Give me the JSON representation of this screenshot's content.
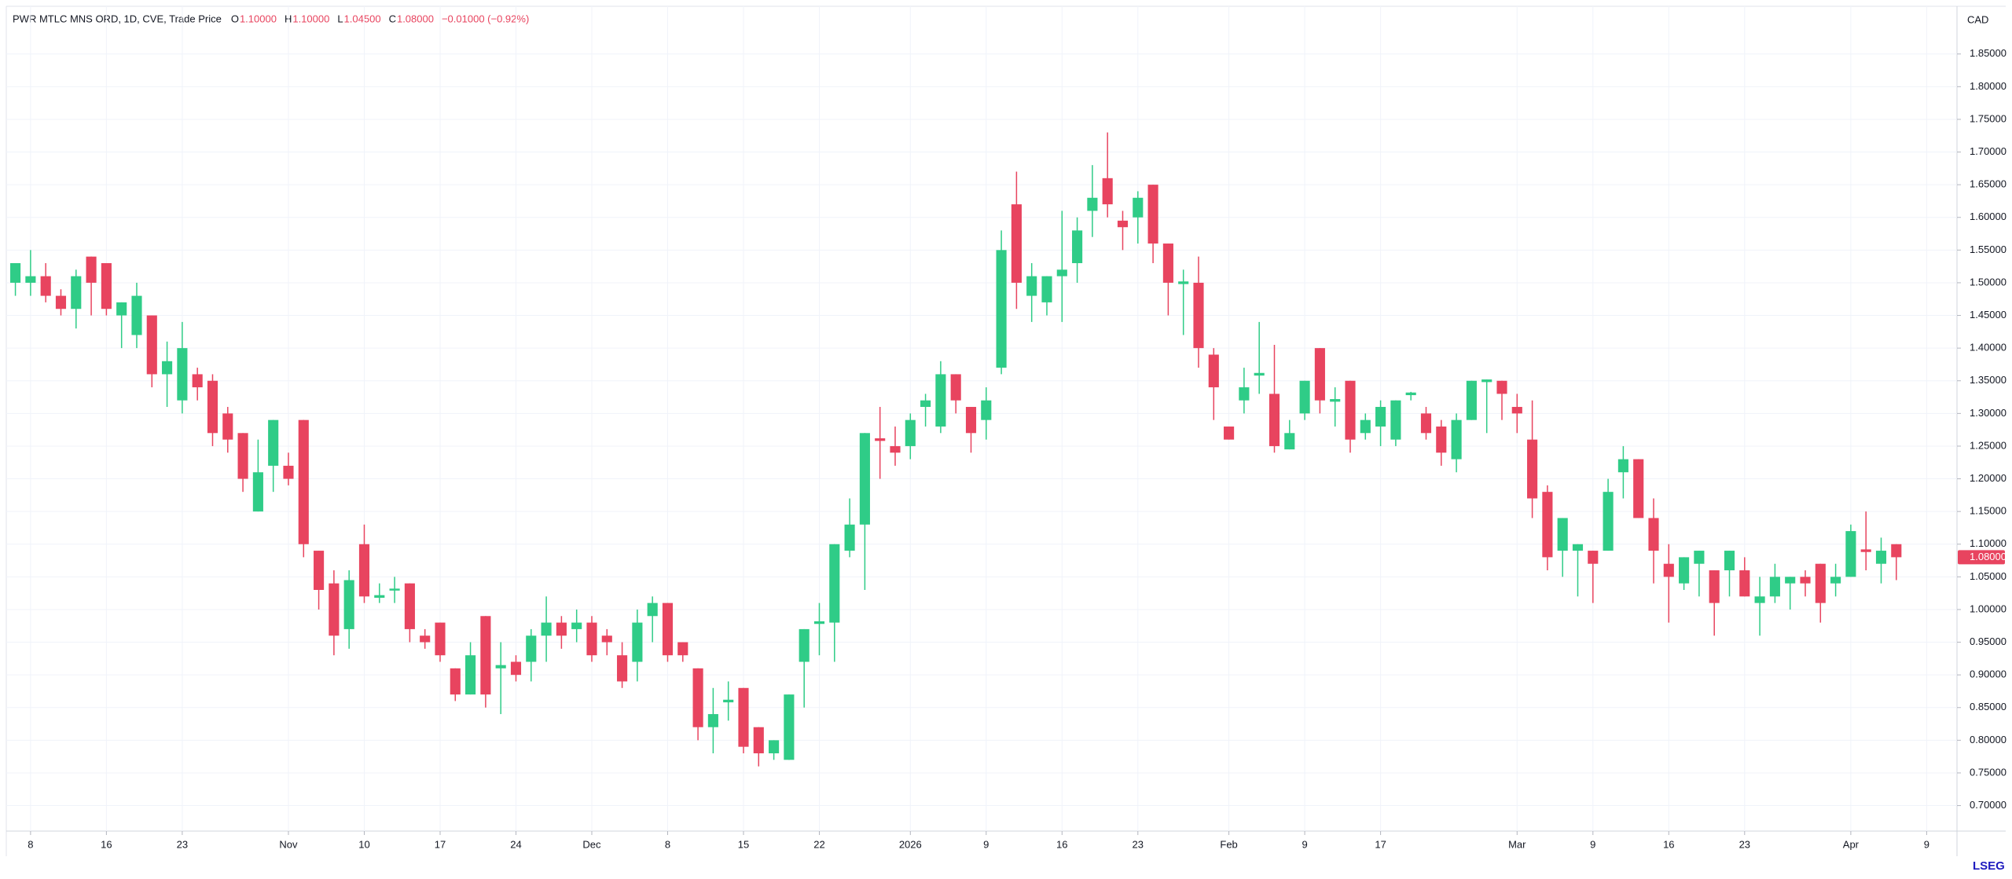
{
  "chart_data": {
    "type": "candlestick",
    "title": "PWR MTLC MNS ORD, 1D, CVE, Trade Price",
    "ohlc_header": [
      {
        "key": "O",
        "value": "1.10000"
      },
      {
        "key": "H",
        "value": "1.10000"
      },
      {
        "key": "L",
        "value": "1.04500"
      },
      {
        "key": "C",
        "value": "1.08000"
      }
    ],
    "change": "−0.01000 (−0.92%)",
    "currency": "CAD",
    "logo": "LSEG",
    "up_color": "#2fcc87",
    "down_color": "#e8445f",
    "grid": true,
    "price_tag": {
      "value": 1.08,
      "label": "1.08000"
    },
    "open": [
      1.5,
      1.5,
      1.51,
      1.48,
      1.46,
      1.54,
      1.53,
      1.45,
      1.42,
      1.45,
      1.36,
      1.32,
      1.36,
      1.35,
      1.3,
      1.27,
      1.15,
      1.22,
      1.22,
      1.29,
      1.09,
      1.04,
      0.97,
      1.1,
      1.018,
      1.029,
      1.04,
      0.96,
      0.98,
      0.91,
      0.87,
      0.99,
      0.91,
      0.92,
      0.92,
      0.96,
      0.98,
      0.97,
      0.98,
      0.96,
      0.93,
      0.92,
      0.99,
      1.01,
      0.95,
      0.91,
      0.82,
      0.858,
      0.88,
      0.82,
      0.78,
      0.77,
      0.92,
      0.978,
      0.98,
      1.09,
      1.13,
      1.262,
      1.25,
      1.25,
      1.31,
      1.28,
      1.36,
      1.31,
      1.29,
      1.37,
      1.62,
      1.48,
      1.47,
      1.51,
      1.53,
      1.61,
      1.66,
      1.595,
      1.6,
      1.65,
      1.56,
      1.498,
      1.5,
      1.39,
      1.28,
      1.32,
      1.358,
      1.33,
      1.245,
      1.3,
      1.4,
      1.318,
      1.35,
      1.27,
      1.28,
      1.26,
      1.328,
      1.3,
      1.28,
      1.23,
      1.29,
      1.348,
      1.35,
      1.31,
      1.26,
      1.18,
      1.09,
      1.09,
      1.09,
      1.09,
      1.21,
      1.23,
      1.14,
      1.07,
      1.04,
      1.07,
      1.06,
      1.06,
      1.06,
      1.01,
      1.02,
      1.04,
      1.05,
      1.07,
      1.04,
      1.05,
      1.092,
      1.07,
      1.1
    ],
    "high": [
      1.53,
      1.55,
      1.53,
      1.49,
      1.52,
      1.54,
      1.53,
      1.47,
      1.5,
      1.45,
      1.41,
      1.44,
      1.37,
      1.36,
      1.31,
      1.27,
      1.26,
      1.29,
      1.24,
      1.29,
      1.09,
      1.06,
      1.06,
      1.13,
      1.04,
      1.05,
      1.04,
      0.97,
      0.98,
      0.91,
      0.95,
      0.99,
      0.95,
      0.93,
      0.97,
      1.02,
      0.99,
      1.0,
      0.99,
      0.97,
      0.95,
      1.0,
      1.02,
      1.01,
      0.95,
      0.91,
      0.88,
      0.89,
      0.88,
      0.82,
      0.8,
      0.87,
      0.97,
      1.01,
      1.1,
      1.17,
      1.27,
      1.31,
      1.28,
      1.3,
      1.33,
      1.38,
      1.36,
      1.31,
      1.34,
      1.58,
      1.67,
      1.53,
      1.51,
      1.61,
      1.6,
      1.68,
      1.73,
      1.61,
      1.64,
      1.65,
      1.56,
      1.52,
      1.54,
      1.4,
      1.28,
      1.37,
      1.44,
      1.405,
      1.29,
      1.35,
      1.4,
      1.34,
      1.35,
      1.3,
      1.32,
      1.32,
      1.333,
      1.31,
      1.29,
      1.3,
      1.35,
      1.352,
      1.35,
      1.33,
      1.32,
      1.19,
      1.14,
      1.1,
      1.09,
      1.2,
      1.25,
      1.23,
      1.17,
      1.1,
      1.08,
      1.09,
      1.06,
      1.09,
      1.08,
      1.05,
      1.07,
      1.05,
      1.06,
      1.07,
      1.07,
      1.13,
      1.15,
      1.11,
      1.1
    ],
    "low": [
      1.48,
      1.48,
      1.47,
      1.45,
      1.43,
      1.45,
      1.45,
      1.4,
      1.4,
      1.34,
      1.31,
      1.3,
      1.32,
      1.25,
      1.24,
      1.18,
      1.15,
      1.18,
      1.19,
      1.08,
      1.0,
      0.93,
      0.94,
      1.01,
      1.01,
      1.01,
      0.95,
      0.94,
      0.92,
      0.86,
      0.87,
      0.85,
      0.84,
      0.89,
      0.89,
      0.92,
      0.94,
      0.95,
      0.92,
      0.93,
      0.88,
      0.89,
      0.95,
      0.92,
      0.92,
      0.8,
      0.78,
      0.83,
      0.78,
      0.76,
      0.77,
      0.77,
      0.85,
      0.93,
      0.92,
      1.08,
      1.03,
      1.2,
      1.22,
      1.23,
      1.28,
      1.27,
      1.3,
      1.24,
      1.26,
      1.36,
      1.46,
      1.44,
      1.45,
      1.44,
      1.5,
      1.57,
      1.6,
      1.55,
      1.56,
      1.53,
      1.45,
      1.42,
      1.37,
      1.29,
      1.26,
      1.3,
      1.33,
      1.24,
      1.245,
      1.29,
      1.3,
      1.28,
      1.24,
      1.26,
      1.25,
      1.25,
      1.32,
      1.26,
      1.22,
      1.21,
      1.29,
      1.27,
      1.29,
      1.27,
      1.14,
      1.06,
      1.05,
      1.02,
      1.01,
      1.09,
      1.17,
      1.14,
      1.04,
      0.98,
      1.03,
      1.02,
      0.96,
      1.02,
      1.02,
      0.96,
      1.01,
      1.0,
      1.02,
      0.98,
      1.02,
      1.05,
      1.06,
      1.04,
      1.045
    ],
    "close": [
      1.53,
      1.51,
      1.48,
      1.46,
      1.51,
      1.5,
      1.46,
      1.47,
      1.48,
      1.36,
      1.38,
      1.4,
      1.34,
      1.27,
      1.26,
      1.2,
      1.21,
      1.29,
      1.2,
      1.1,
      1.03,
      0.96,
      1.045,
      1.02,
      1.022,
      1.032,
      0.97,
      0.95,
      0.93,
      0.87,
      0.93,
      0.87,
      0.915,
      0.9,
      0.96,
      0.98,
      0.96,
      0.98,
      0.93,
      0.95,
      0.89,
      0.98,
      1.01,
      0.93,
      0.93,
      0.82,
      0.84,
      0.862,
      0.79,
      0.78,
      0.8,
      0.87,
      0.97,
      0.982,
      1.1,
      1.13,
      1.27,
      1.258,
      1.24,
      1.29,
      1.32,
      1.36,
      1.32,
      1.27,
      1.32,
      1.55,
      1.5,
      1.51,
      1.51,
      1.52,
      1.58,
      1.63,
      1.62,
      1.585,
      1.63,
      1.56,
      1.5,
      1.502,
      1.4,
      1.34,
      1.26,
      1.34,
      1.362,
      1.25,
      1.27,
      1.35,
      1.32,
      1.322,
      1.26,
      1.29,
      1.31,
      1.32,
      1.332,
      1.27,
      1.24,
      1.29,
      1.35,
      1.352,
      1.33,
      1.3,
      1.17,
      1.08,
      1.14,
      1.1,
      1.07,
      1.18,
      1.23,
      1.14,
      1.09,
      1.05,
      1.08,
      1.09,
      1.01,
      1.09,
      1.02,
      1.02,
      1.05,
      1.05,
      1.04,
      1.01,
      1.05,
      1.12,
      1.088,
      1.09,
      1.08
    ],
    "xlim": [
      -0.6,
      128
    ],
    "xticks": [
      {
        "value": 1,
        "label": "8"
      },
      {
        "value": 6,
        "label": "16"
      },
      {
        "value": 11,
        "label": "23"
      },
      {
        "value": 18,
        "label": "Nov"
      },
      {
        "value": 23,
        "label": "10"
      },
      {
        "value": 28,
        "label": "17"
      },
      {
        "value": 33,
        "label": "24"
      },
      {
        "value": 38,
        "label": "Dec"
      },
      {
        "value": 43,
        "label": "8"
      },
      {
        "value": 48,
        "label": "15"
      },
      {
        "value": 53,
        "label": "22"
      },
      {
        "value": 59,
        "label": "2026"
      },
      {
        "value": 64,
        "label": "9"
      },
      {
        "value": 69,
        "label": "16"
      },
      {
        "value": 74,
        "label": "23"
      },
      {
        "value": 80,
        "label": "Feb"
      },
      {
        "value": 85,
        "label": "9"
      },
      {
        "value": 90,
        "label": "17"
      },
      {
        "value": 99,
        "label": "Mar"
      },
      {
        "value": 104,
        "label": "9"
      },
      {
        "value": 109,
        "label": "16"
      },
      {
        "value": 114,
        "label": "23"
      },
      {
        "value": 121,
        "label": "Apr"
      },
      {
        "value": 126,
        "label": "9"
      }
    ],
    "ylim": [
      0.661,
      1.923
    ],
    "yticks": [
      {
        "value": 0.7,
        "label": "0.70000"
      },
      {
        "value": 0.75,
        "label": "0.75000"
      },
      {
        "value": 0.8,
        "label": "0.80000"
      },
      {
        "value": 0.85,
        "label": "0.85000"
      },
      {
        "value": 0.9,
        "label": "0.90000"
      },
      {
        "value": 0.95,
        "label": "0.95000"
      },
      {
        "value": 1.0,
        "label": "1.00000"
      },
      {
        "value": 1.05,
        "label": "1.05000"
      },
      {
        "value": 1.1,
        "label": "1.10000"
      },
      {
        "value": 1.15,
        "label": "1.15000"
      },
      {
        "value": 1.2,
        "label": "1.20000"
      },
      {
        "value": 1.25,
        "label": "1.25000"
      },
      {
        "value": 1.3,
        "label": "1.30000"
      },
      {
        "value": 1.35,
        "label": "1.35000"
      },
      {
        "value": 1.4,
        "label": "1.40000"
      },
      {
        "value": 1.45,
        "label": "1.45000"
      },
      {
        "value": 1.5,
        "label": "1.50000"
      },
      {
        "value": 1.55,
        "label": "1.55000"
      },
      {
        "value": 1.6,
        "label": "1.60000"
      },
      {
        "value": 1.65,
        "label": "1.65000"
      },
      {
        "value": 1.7,
        "label": "1.70000"
      },
      {
        "value": 1.75,
        "label": "1.75000"
      },
      {
        "value": 1.8,
        "label": "1.80000"
      },
      {
        "value": 1.85,
        "label": "1.85000"
      }
    ]
  }
}
